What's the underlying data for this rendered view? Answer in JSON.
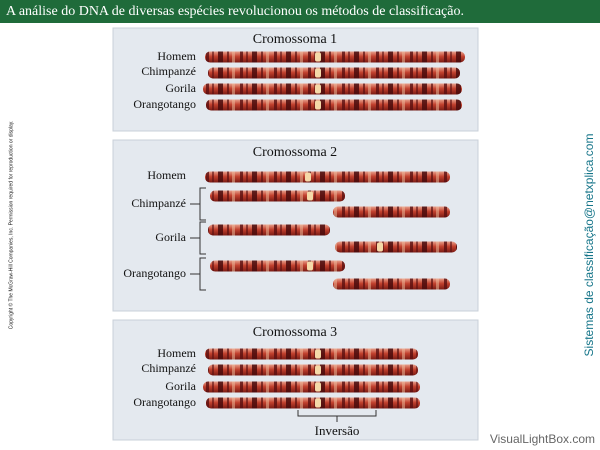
{
  "header": {
    "title": "A análise do DNA de diversas espécies revolucionou os métodos de classificação."
  },
  "copyright": "Copyright © The McGraw-Hill Companies, Inc. Permission required for reproduction or display.",
  "side_label": "Sistemas de classificação@netxplica.com",
  "panels": [
    {
      "title": "Cromossoma 1",
      "species": [
        "Homem",
        "Chimpanzé",
        "Gorila",
        "Orangotango"
      ]
    },
    {
      "title": "Cromossoma 2",
      "species": [
        "Homem",
        "Chimpanzé",
        "Gorila",
        "Orangotango"
      ]
    },
    {
      "title": "Cromossoma 3",
      "species": [
        "Homem",
        "Chimpanzé",
        "Gorila",
        "Orangotango"
      ],
      "annotation": "Inversão"
    }
  ],
  "watermark": "VisualLightBox.com"
}
